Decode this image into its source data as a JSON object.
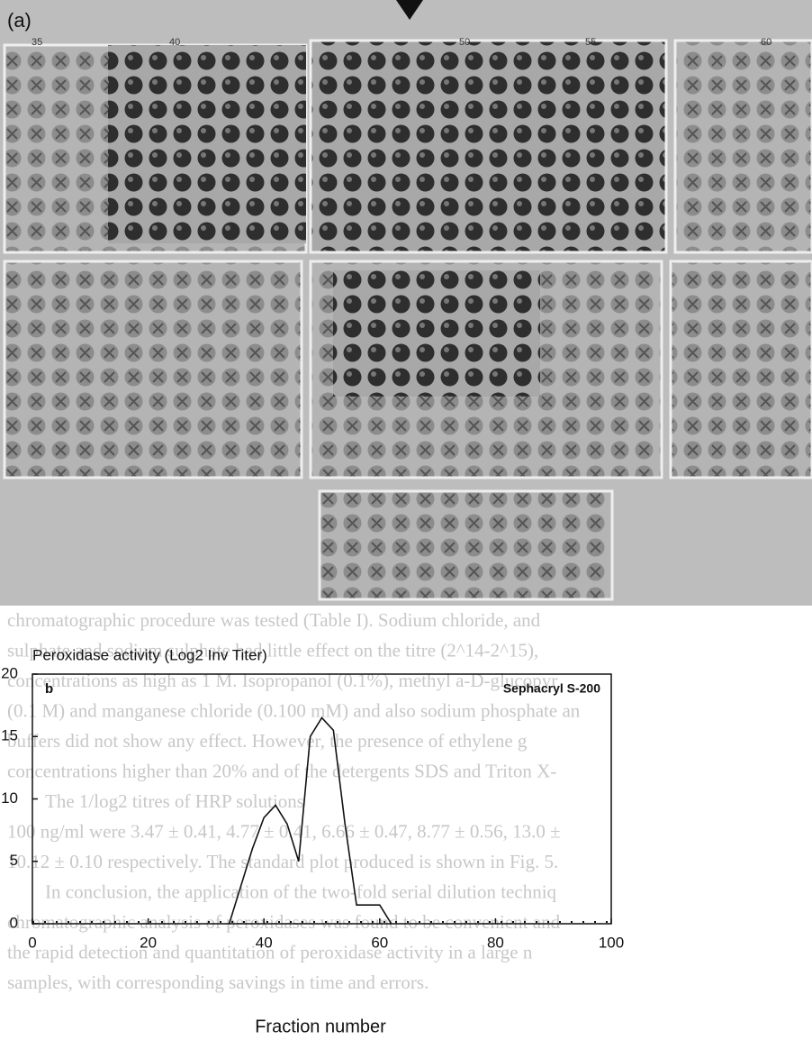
{
  "panel_a": {
    "label": "(a)",
    "plate_labels": [
      "35",
      "40",
      "50",
      "55",
      "60"
    ]
  },
  "background_text": [
    "chromatographic procedure was tested (Table I). Sodium chloride, and",
    "sulphate and sodium sulphate had little effect on the titre (2^14-2^15),",
    "concentrations as high as 1 M. Isopropanol (0.1%), methyl a-D-glucopyr",
    "(0.1 M) and manganese chloride (0.100 mM) and also sodium phosphate an",
    "buffers did not show any effect. However, the presence of ethylene g",
    "concentrations higher than 20% and of the detergents SDS and Triton X-",
    "The 1/log2 titres of HRP solutions",
    "100 ng/ml were 3.47 ± 0.41, 4.77 ± 0.41, 6.66 ± 0.47, 8.77 ± 0.56, 13.0 ±",
    "10.12 ± 0.10 respectively. The standard plot produced is shown in Fig. 5.",
    "In conclusion, the application of the two-fold serial dilution techniq",
    "chromatographic analysis of peroxidases was found to be convenient and",
    "the rapid detection and quantitation of peroxidase activity in a large n",
    "samples, with corresponding savings in time and errors."
  ],
  "chart_data": {
    "type": "line",
    "panel_label": "b",
    "title": "Sephacryl S-200",
    "y_label": "Peroxidase activity (Log2 Inv Titer)",
    "x_label": "Fraction number",
    "x": [
      34,
      36,
      38,
      40,
      42,
      44,
      46,
      48,
      50,
      52,
      54,
      56,
      58,
      60,
      62
    ],
    "values": [
      0,
      3,
      6,
      8.5,
      9.5,
      8,
      5,
      15,
      16.5,
      15.5,
      8,
      1.5,
      1.5,
      1.5,
      0
    ],
    "color": "#111111",
    "xlim": [
      0,
      100
    ],
    "xticks": [
      0,
      20,
      40,
      60,
      80,
      100
    ],
    "ylim": [
      0,
      20
    ],
    "yticks": [
      0,
      5,
      10,
      15,
      20
    ],
    "grid": false
  }
}
